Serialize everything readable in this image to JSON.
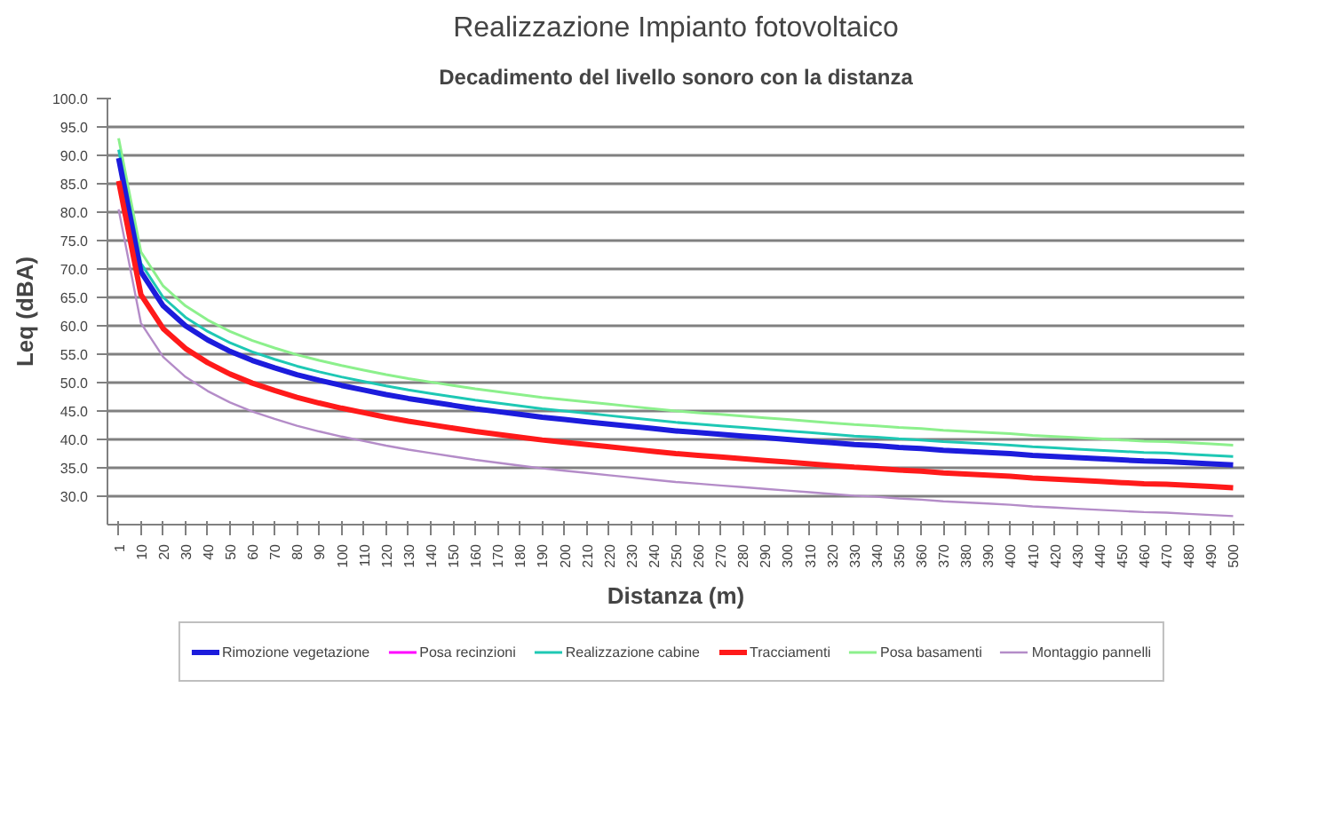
{
  "chart_data": {
    "type": "line",
    "title": "Realizzazione Impianto fotovoltaico",
    "subtitle": "Decadimento del livello sonoro con la distanza",
    "xlabel": "Distanza (m)",
    "ylabel": "Leq (dBA)",
    "categories": [
      "1",
      "10",
      "20",
      "30",
      "40",
      "50",
      "60",
      "70",
      "80",
      "90",
      "100",
      "110",
      "120",
      "130",
      "140",
      "150",
      "160",
      "170",
      "180",
      "190",
      "200",
      "210",
      "220",
      "230",
      "240",
      "250",
      "260",
      "270",
      "280",
      "290",
      "300",
      "310",
      "320",
      "330",
      "340",
      "350",
      "360",
      "370",
      "380",
      "390",
      "400",
      "410",
      "420",
      "430",
      "440",
      "450",
      "460",
      "470",
      "480",
      "490",
      "500"
    ],
    "ylim": [
      25,
      100
    ],
    "yticks": [
      {
        "value": 30,
        "label": "30.0"
      },
      {
        "value": 35,
        "label": "35.0"
      },
      {
        "value": 40,
        "label": "40.0"
      },
      {
        "value": 45,
        "label": "45.0"
      },
      {
        "value": 50,
        "label": "50.0"
      },
      {
        "value": 55,
        "label": "55.0"
      },
      {
        "value": 60,
        "label": "60.0"
      },
      {
        "value": 65,
        "label": "65.0"
      },
      {
        "value": 70,
        "label": "70.0"
      },
      {
        "value": 75,
        "label": "75.0"
      },
      {
        "value": 80,
        "label": "80.0"
      },
      {
        "value": 85,
        "label": "85.0"
      },
      {
        "value": 90,
        "label": "90.0"
      },
      {
        "value": 95,
        "label": "95.0"
      },
      {
        "value": 100,
        "label": "100.0"
      }
    ],
    "grid": "y",
    "legend": "bottom",
    "marker": "none",
    "line_style": "solid",
    "series": [
      {
        "name": "Rimozione vegetazione",
        "color": "#1c1cdc",
        "values": [
          89.5,
          69.5,
          63.5,
          60.0,
          57.5,
          55.5,
          53.9,
          52.6,
          51.4,
          50.4,
          49.5,
          48.7,
          47.9,
          47.2,
          46.6,
          46.0,
          45.4,
          44.9,
          44.4,
          43.9,
          43.5,
          43.1,
          42.7,
          42.3,
          41.9,
          41.5,
          41.2,
          40.9,
          40.6,
          40.3,
          40.0,
          39.7,
          39.4,
          39.1,
          38.9,
          38.6,
          38.4,
          38.1,
          37.9,
          37.7,
          37.5,
          37.2,
          37.0,
          36.8,
          36.6,
          36.4,
          36.2,
          36.1,
          35.9,
          35.7,
          35.5
        ]
      },
      {
        "name": "Posa recinzioni",
        "color": "#ff00ff",
        "values": [
          null,
          null,
          null,
          null,
          null,
          null,
          null,
          null,
          null,
          null,
          null,
          null,
          null,
          null,
          null,
          null,
          null,
          null,
          null,
          null,
          null,
          null,
          null,
          null,
          null,
          null,
          null,
          null,
          null,
          null,
          null,
          null,
          null,
          null,
          null,
          null,
          null,
          null,
          null,
          null,
          null,
          null,
          null,
          null,
          null,
          null,
          null,
          null,
          null,
          null,
          null
        ]
      },
      {
        "name": "Realizzazione cabine",
        "color": "#1ec8b4",
        "values": [
          91.0,
          71.0,
          65.0,
          61.5,
          59.0,
          57.0,
          55.4,
          54.1,
          52.9,
          51.9,
          51.0,
          50.2,
          49.4,
          48.7,
          48.1,
          47.5,
          46.9,
          46.4,
          45.9,
          45.4,
          45.0,
          44.6,
          44.2,
          43.8,
          43.4,
          43.0,
          42.7,
          42.4,
          42.1,
          41.8,
          41.5,
          41.2,
          40.9,
          40.6,
          40.4,
          40.1,
          39.9,
          39.6,
          39.4,
          39.2,
          39.0,
          38.7,
          38.5,
          38.3,
          38.1,
          37.9,
          37.7,
          37.6,
          37.4,
          37.2,
          37.0
        ]
      },
      {
        "name": "Tracciamenti",
        "color": "#ff1a1a",
        "values": [
          85.5,
          65.5,
          59.5,
          56.0,
          53.5,
          51.5,
          49.9,
          48.6,
          47.4,
          46.4,
          45.5,
          44.7,
          43.9,
          43.2,
          42.6,
          42.0,
          41.4,
          40.9,
          40.4,
          39.9,
          39.5,
          39.1,
          38.7,
          38.3,
          37.9,
          37.5,
          37.2,
          36.9,
          36.6,
          36.3,
          36.0,
          35.7,
          35.4,
          35.1,
          34.9,
          34.6,
          34.4,
          34.1,
          33.9,
          33.7,
          33.5,
          33.2,
          33.0,
          32.8,
          32.6,
          32.4,
          32.2,
          32.1,
          31.9,
          31.7,
          31.5
        ]
      },
      {
        "name": "Posa basamenti",
        "color": "#8cf08c",
        "values": [
          93.0,
          73.0,
          67.0,
          63.5,
          61.0,
          59.0,
          57.4,
          56.1,
          54.9,
          53.9,
          53.0,
          52.2,
          51.4,
          50.7,
          50.1,
          49.5,
          48.9,
          48.4,
          47.9,
          47.4,
          47.0,
          46.6,
          46.2,
          45.8,
          45.4,
          45.0,
          44.7,
          44.4,
          44.1,
          43.8,
          43.5,
          43.2,
          42.9,
          42.6,
          42.4,
          42.1,
          41.9,
          41.6,
          41.4,
          41.2,
          41.0,
          40.7,
          40.5,
          40.3,
          40.1,
          39.9,
          39.7,
          39.6,
          39.4,
          39.2,
          39.0
        ]
      },
      {
        "name": "Montaggio pannelli",
        "color": "#b48cc8",
        "values": [
          80.5,
          60.5,
          54.5,
          51.0,
          48.5,
          46.5,
          44.9,
          43.6,
          42.4,
          41.4,
          40.5,
          39.7,
          38.9,
          38.2,
          37.6,
          37.0,
          36.4,
          35.9,
          35.4,
          34.9,
          34.5,
          34.1,
          33.7,
          33.3,
          32.9,
          32.5,
          32.2,
          31.9,
          31.6,
          31.3,
          31.0,
          30.7,
          30.4,
          30.1,
          29.9,
          29.6,
          29.4,
          29.1,
          28.9,
          28.7,
          28.5,
          28.2,
          28.0,
          27.8,
          27.6,
          27.4,
          27.2,
          27.1,
          26.9,
          26.7,
          26.5
        ]
      }
    ]
  }
}
